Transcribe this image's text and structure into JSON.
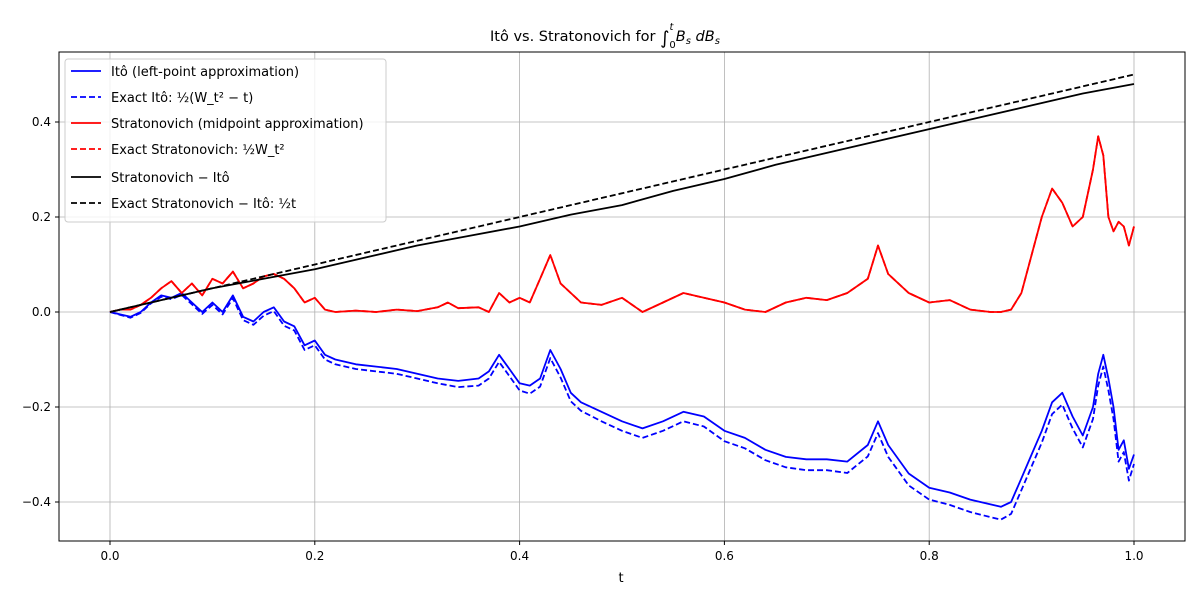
{
  "chart_data": {
    "type": "line",
    "title": "Itô vs. Stratonovich for ∫₀ᵗ B_s dB_s",
    "title_parts": {
      "prefix": "Itô vs. Stratonovich for ",
      "integral": "∫",
      "upper": "t",
      "lower": "0",
      "integrand": "B",
      "sub1": "s",
      "d": " dB",
      "sub2": "s"
    },
    "xlabel": "t",
    "ylabel": "",
    "xlim": [
      -0.05,
      1.05
    ],
    "ylim": [
      -0.49,
      0.545
    ],
    "grid": true,
    "legend_position": "upper left",
    "x_ticks": [
      "0.0",
      "0.2",
      "0.4",
      "0.6",
      "0.8",
      "1.0"
    ],
    "x_tick_values": [
      0.0,
      0.2,
      0.4,
      0.6,
      0.8,
      1.0
    ],
    "y_ticks": [
      "−0.4",
      "−0.2",
      "0.0",
      "0.2",
      "0.4"
    ],
    "y_tick_values": [
      -0.4,
      -0.2,
      0.0,
      0.2,
      0.4
    ],
    "series": [
      {
        "name": "Itô (left-point approximation)",
        "legend_label": "Itô (left-point approximation)",
        "color": "#0000ff",
        "style": "solid",
        "x": [
          0,
          0.01,
          0.02,
          0.03,
          0.04,
          0.05,
          0.06,
          0.07,
          0.08,
          0.09,
          0.1,
          0.11,
          0.12,
          0.13,
          0.14,
          0.15,
          0.16,
          0.17,
          0.18,
          0.19,
          0.2,
          0.21,
          0.22,
          0.24,
          0.26,
          0.28,
          0.3,
          0.32,
          0.34,
          0.36,
          0.37,
          0.38,
          0.39,
          0.4,
          0.41,
          0.42,
          0.43,
          0.44,
          0.45,
          0.46,
          0.48,
          0.5,
          0.52,
          0.54,
          0.56,
          0.58,
          0.6,
          0.62,
          0.64,
          0.66,
          0.68,
          0.7,
          0.72,
          0.74,
          0.75,
          0.76,
          0.78,
          0.8,
          0.82,
          0.84,
          0.86,
          0.87,
          0.88,
          0.89,
          0.9,
          0.91,
          0.92,
          0.93,
          0.94,
          0.95,
          0.96,
          0.965,
          0.97,
          0.975,
          0.98,
          0.985,
          0.99,
          0.995,
          1.0
        ],
        "y": [
          0,
          -0.005,
          -0.01,
          0.0,
          0.02,
          0.035,
          0.03,
          0.04,
          0.02,
          0.0,
          0.02,
          0.0,
          0.035,
          -0.01,
          -0.02,
          0.0,
          0.01,
          -0.02,
          -0.03,
          -0.07,
          -0.06,
          -0.09,
          -0.1,
          -0.11,
          -0.115,
          -0.12,
          -0.13,
          -0.14,
          -0.145,
          -0.14,
          -0.125,
          -0.09,
          -0.12,
          -0.15,
          -0.155,
          -0.14,
          -0.08,
          -0.12,
          -0.17,
          -0.19,
          -0.21,
          -0.23,
          -0.245,
          -0.23,
          -0.21,
          -0.22,
          -0.25,
          -0.265,
          -0.29,
          -0.305,
          -0.31,
          -0.31,
          -0.315,
          -0.28,
          -0.23,
          -0.28,
          -0.34,
          -0.37,
          -0.38,
          -0.395,
          -0.405,
          -0.41,
          -0.4,
          -0.35,
          -0.3,
          -0.25,
          -0.19,
          -0.17,
          -0.22,
          -0.26,
          -0.2,
          -0.13,
          -0.09,
          -0.14,
          -0.2,
          -0.29,
          -0.27,
          -0.33,
          -0.3
        ]
      },
      {
        "name": "Exact Itô",
        "legend_label": "Exact Itô: ½(W_t² − t)",
        "color": "#0000ff",
        "style": "dashed",
        "x": [
          0,
          0.01,
          0.02,
          0.03,
          0.04,
          0.05,
          0.06,
          0.07,
          0.08,
          0.09,
          0.1,
          0.11,
          0.12,
          0.13,
          0.14,
          0.15,
          0.16,
          0.17,
          0.18,
          0.19,
          0.2,
          0.21,
          0.22,
          0.24,
          0.26,
          0.28,
          0.3,
          0.32,
          0.34,
          0.36,
          0.37,
          0.38,
          0.39,
          0.4,
          0.41,
          0.42,
          0.43,
          0.44,
          0.45,
          0.46,
          0.48,
          0.5,
          0.52,
          0.54,
          0.56,
          0.58,
          0.6,
          0.62,
          0.64,
          0.66,
          0.68,
          0.7,
          0.72,
          0.74,
          0.75,
          0.76,
          0.78,
          0.8,
          0.82,
          0.84,
          0.86,
          0.87,
          0.88,
          0.89,
          0.9,
          0.91,
          0.92,
          0.93,
          0.94,
          0.95,
          0.96,
          0.965,
          0.97,
          0.975,
          0.98,
          0.985,
          0.99,
          0.995,
          1.0
        ],
        "y": [
          0,
          -0.006,
          -0.012,
          -0.002,
          0.018,
          0.032,
          0.027,
          0.036,
          0.016,
          -0.004,
          0.015,
          -0.005,
          0.029,
          -0.017,
          -0.027,
          -0.008,
          0.002,
          -0.029,
          -0.039,
          -0.08,
          -0.07,
          -0.1,
          -0.11,
          -0.12,
          -0.125,
          -0.13,
          -0.14,
          -0.15,
          -0.158,
          -0.155,
          -0.14,
          -0.105,
          -0.135,
          -0.165,
          -0.172,
          -0.157,
          -0.097,
          -0.138,
          -0.188,
          -0.208,
          -0.23,
          -0.25,
          -0.265,
          -0.25,
          -0.23,
          -0.241,
          -0.272,
          -0.287,
          -0.312,
          -0.327,
          -0.333,
          -0.333,
          -0.339,
          -0.304,
          -0.255,
          -0.305,
          -0.365,
          -0.395,
          -0.406,
          -0.421,
          -0.432,
          -0.437,
          -0.425,
          -0.375,
          -0.325,
          -0.275,
          -0.215,
          -0.195,
          -0.245,
          -0.285,
          -0.225,
          -0.155,
          -0.115,
          -0.165,
          -0.225,
          -0.315,
          -0.295,
          -0.355,
          -0.32
        ]
      },
      {
        "name": "Stratonovich (midpoint approximation)",
        "legend_label": "Stratonovich (midpoint approximation)",
        "color": "#ff0000",
        "style": "solid",
        "x": [
          0,
          0.01,
          0.02,
          0.03,
          0.04,
          0.05,
          0.06,
          0.07,
          0.08,
          0.09,
          0.1,
          0.11,
          0.12,
          0.13,
          0.14,
          0.15,
          0.16,
          0.17,
          0.18,
          0.19,
          0.2,
          0.21,
          0.22,
          0.24,
          0.26,
          0.28,
          0.3,
          0.32,
          0.33,
          0.34,
          0.36,
          0.37,
          0.38,
          0.39,
          0.4,
          0.41,
          0.42,
          0.43,
          0.44,
          0.45,
          0.46,
          0.48,
          0.5,
          0.52,
          0.54,
          0.56,
          0.58,
          0.6,
          0.62,
          0.64,
          0.66,
          0.68,
          0.7,
          0.72,
          0.74,
          0.75,
          0.76,
          0.78,
          0.8,
          0.82,
          0.84,
          0.86,
          0.87,
          0.88,
          0.89,
          0.9,
          0.91,
          0.92,
          0.93,
          0.94,
          0.95,
          0.96,
          0.965,
          0.97,
          0.975,
          0.98,
          0.985,
          0.99,
          0.995,
          1.0
        ],
        "y": [
          0,
          0.005,
          0.005,
          0.015,
          0.03,
          0.05,
          0.065,
          0.04,
          0.06,
          0.035,
          0.07,
          0.06,
          0.085,
          0.05,
          0.06,
          0.075,
          0.08,
          0.07,
          0.05,
          0.02,
          0.03,
          0.005,
          0.0,
          0.003,
          0.0,
          0.005,
          0.002,
          0.01,
          0.02,
          0.008,
          0.01,
          0.0,
          0.04,
          0.02,
          0.03,
          0.02,
          0.07,
          0.12,
          0.06,
          0.04,
          0.02,
          0.015,
          0.03,
          0.0,
          0.02,
          0.04,
          0.03,
          0.02,
          0.005,
          0.0,
          0.02,
          0.03,
          0.025,
          0.04,
          0.07,
          0.14,
          0.08,
          0.04,
          0.02,
          0.025,
          0.005,
          0.0,
          0.0,
          0.005,
          0.04,
          0.12,
          0.2,
          0.26,
          0.23,
          0.18,
          0.2,
          0.3,
          0.37,
          0.33,
          0.2,
          0.17,
          0.19,
          0.18,
          0.14,
          0.18
        ]
      },
      {
        "name": "Exact Stratonovich",
        "legend_label": "Exact Stratonovich: ½W_t²",
        "color": "#ff0000",
        "style": "dashed",
        "x": [
          0,
          0.01,
          0.02,
          0.03,
          0.04,
          0.05,
          0.06,
          0.07,
          0.08,
          0.09,
          0.1,
          0.11,
          0.12,
          0.13,
          0.14,
          0.15,
          0.16,
          0.17,
          0.18,
          0.19,
          0.2,
          0.21,
          0.22,
          0.24,
          0.26,
          0.28,
          0.3,
          0.32,
          0.33,
          0.34,
          0.36,
          0.37,
          0.38,
          0.39,
          0.4,
          0.41,
          0.42,
          0.43,
          0.44,
          0.45,
          0.46,
          0.48,
          0.5,
          0.52,
          0.54,
          0.56,
          0.58,
          0.6,
          0.62,
          0.64,
          0.66,
          0.68,
          0.7,
          0.72,
          0.74,
          0.75,
          0.76,
          0.78,
          0.8,
          0.82,
          0.84,
          0.86,
          0.87,
          0.88,
          0.89,
          0.9,
          0.91,
          0.92,
          0.93,
          0.94,
          0.95,
          0.96,
          0.965,
          0.97,
          0.975,
          0.98,
          0.985,
          0.99,
          0.995,
          1.0
        ],
        "y": [
          0,
          0.005,
          0.005,
          0.015,
          0.03,
          0.05,
          0.065,
          0.04,
          0.06,
          0.035,
          0.07,
          0.06,
          0.085,
          0.05,
          0.06,
          0.075,
          0.08,
          0.07,
          0.05,
          0.02,
          0.03,
          0.005,
          0.0,
          0.003,
          0.0,
          0.005,
          0.002,
          0.01,
          0.02,
          0.008,
          0.01,
          0.0,
          0.04,
          0.02,
          0.03,
          0.02,
          0.07,
          0.12,
          0.06,
          0.04,
          0.02,
          0.015,
          0.03,
          0.0,
          0.02,
          0.04,
          0.03,
          0.02,
          0.005,
          0.0,
          0.02,
          0.03,
          0.025,
          0.04,
          0.07,
          0.14,
          0.08,
          0.04,
          0.02,
          0.025,
          0.005,
          0.0,
          0.0,
          0.005,
          0.04,
          0.12,
          0.2,
          0.26,
          0.23,
          0.18,
          0.2,
          0.3,
          0.37,
          0.33,
          0.2,
          0.17,
          0.19,
          0.18,
          0.14,
          0.18
        ]
      },
      {
        "name": "Stratonovich − Itô",
        "legend_label": "Stratonovich − Itô",
        "color": "#000000",
        "style": "solid",
        "x": [
          0,
          0.05,
          0.1,
          0.15,
          0.2,
          0.25,
          0.3,
          0.35,
          0.4,
          0.45,
          0.5,
          0.55,
          0.6,
          0.65,
          0.7,
          0.75,
          0.8,
          0.85,
          0.9,
          0.95,
          1.0
        ],
        "y": [
          0,
          0.025,
          0.05,
          0.07,
          0.09,
          0.115,
          0.14,
          0.16,
          0.18,
          0.205,
          0.225,
          0.255,
          0.28,
          0.31,
          0.335,
          0.36,
          0.385,
          0.41,
          0.435,
          0.46,
          0.48
        ]
      },
      {
        "name": "Exact Stratonovich − Itô",
        "legend_label": "Exact Stratonovich − Itô: ½t",
        "color": "#000000",
        "style": "dashed",
        "x": [
          0,
          1.0
        ],
        "y": [
          0,
          0.5
        ]
      }
    ]
  }
}
